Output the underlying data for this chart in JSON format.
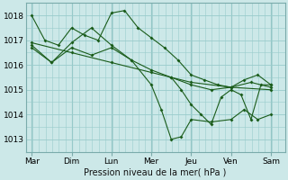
{
  "xlabel": "Pression niveau de la mer( hPa )",
  "background_color": "#cce8e8",
  "grid_color": "#99cccc",
  "line_color": "#1a5c1a",
  "ylim": [
    1012.5,
    1018.5
  ],
  "xlim": [
    -0.15,
    6.35
  ],
  "day_labels": [
    "Mar",
    "Dim",
    "Lun",
    "Mer",
    "Jeu",
    "Ven",
    "Sam"
  ],
  "day_positions": [
    0,
    1,
    2,
    3,
    4,
    5,
    6
  ],
  "yticks": [
    1013,
    1014,
    1015,
    1016,
    1017,
    1018
  ],
  "series1_x": [
    0,
    0.33,
    0.67,
    1.0,
    1.33,
    1.67,
    2.0,
    2.33,
    2.67,
    3.0,
    3.33,
    3.67,
    4.0,
    4.33,
    4.67,
    5.0,
    5.33,
    5.67,
    6.0
  ],
  "series1_y": [
    1018.0,
    1017.0,
    1016.8,
    1017.5,
    1017.2,
    1017.0,
    1018.1,
    1018.2,
    1017.5,
    1017.1,
    1016.7,
    1016.2,
    1015.6,
    1015.4,
    1015.2,
    1015.1,
    1015.4,
    1015.6,
    1015.2
  ],
  "series2_x": [
    0,
    0.5,
    1.0,
    1.5,
    2.0,
    2.5,
    3.0,
    3.5,
    4.0,
    4.5,
    5.0,
    5.5,
    6.0
  ],
  "series2_y": [
    1016.8,
    1016.1,
    1016.7,
    1016.4,
    1016.7,
    1016.2,
    1015.8,
    1015.5,
    1015.2,
    1015.0,
    1015.1,
    1015.3,
    1015.1
  ],
  "series3_x": [
    0,
    1.0,
    2.0,
    3.0,
    4.0,
    5.0,
    6.0
  ],
  "series3_y": [
    1016.9,
    1016.5,
    1016.1,
    1015.7,
    1015.3,
    1015.1,
    1015.0
  ],
  "series4_x": [
    0,
    0.5,
    1.0,
    1.5,
    2.0,
    2.5,
    3.0,
    3.25,
    3.5,
    3.75,
    4.0,
    4.5,
    5.0,
    5.33,
    5.67,
    6.0
  ],
  "series4_y": [
    1016.7,
    1016.1,
    1016.9,
    1017.5,
    1016.8,
    1016.2,
    1015.2,
    1014.2,
    1013.0,
    1013.1,
    1013.8,
    1013.7,
    1013.8,
    1014.2,
    1013.8,
    1014.0
  ],
  "series5_x": [
    3.5,
    3.75,
    4.0,
    4.25,
    4.5,
    4.75,
    5.0,
    5.25,
    5.5,
    5.75,
    6.0
  ],
  "series5_y": [
    1015.5,
    1015.0,
    1014.4,
    1014.0,
    1013.6,
    1014.7,
    1015.0,
    1014.8,
    1013.8,
    1015.2,
    1015.2
  ]
}
